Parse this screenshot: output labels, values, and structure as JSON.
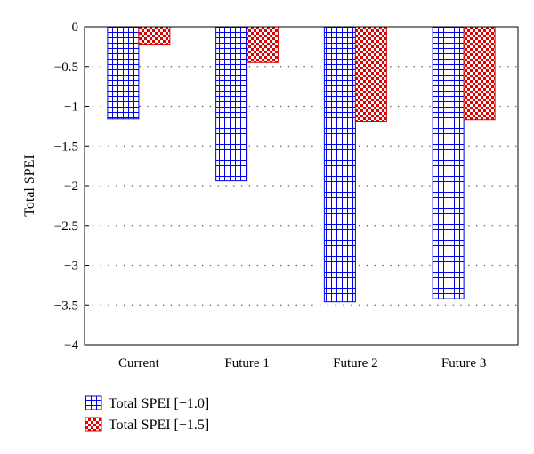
{
  "chart_data": {
    "type": "bar",
    "title": "",
    "xlabel": "",
    "ylabel": "Total SPEI",
    "categories": [
      "Current",
      "Future 1",
      "Future 2",
      "Future 3"
    ],
    "series": [
      {
        "name": "Total SPEI [−1.0]",
        "values": [
          -1.16,
          -1.94,
          -3.46,
          -3.42
        ],
        "color": "#0000ee",
        "pattern": "grid"
      },
      {
        "name": "Total SPEI [−1.5]",
        "values": [
          -0.23,
          -0.45,
          -1.19,
          -1.17
        ],
        "color": "#dd0000",
        "pattern": "checker"
      }
    ],
    "ylim": [
      -4,
      0
    ],
    "yticks": [
      0,
      -0.5,
      -1,
      -1.5,
      -2,
      -2.5,
      -3,
      -3.5,
      -4
    ],
    "ytick_labels": [
      "0",
      "−0.5",
      "−1",
      "−1.5",
      "−2",
      "−2.5",
      "−3",
      "−3.5",
      "−4"
    ],
    "grid": "horizontal-dotted",
    "legend_position": "bottom-left"
  }
}
